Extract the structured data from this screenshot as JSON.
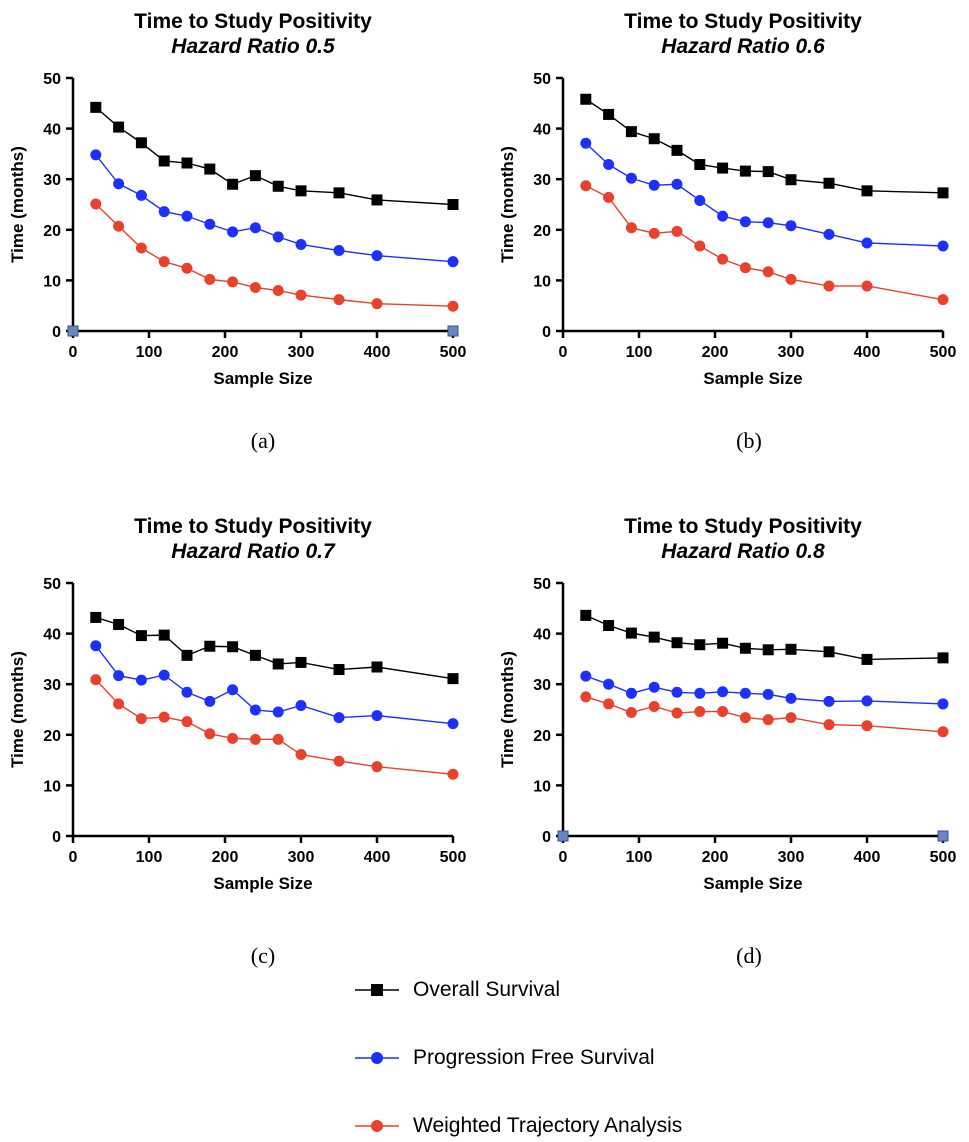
{
  "colors": {
    "os": "#000000",
    "pfs": "#1f2fff",
    "wta": "#e8412e",
    "axis_end_marker": "#6b84c4"
  },
  "legend": [
    {
      "name": "Overall Survival",
      "color": "#000000",
      "marker": "square"
    },
    {
      "name": "Progression Free Survival",
      "color": "#1f2fff",
      "marker": "circle"
    },
    {
      "name": "Weighted Trajectory Analysis",
      "color": "#e8412e",
      "marker": "circle"
    }
  ],
  "panels": [
    {
      "label": "(a)"
    },
    {
      "label": "(b)"
    },
    {
      "label": "(c)"
    },
    {
      "label": "(d)"
    }
  ],
  "chart_data": [
    {
      "type": "line",
      "title": "Time to Study Positivity",
      "subtitle": "Hazard Ratio 0.5",
      "xlabel": "Sample Size",
      "ylabel": "Time (months)",
      "xlim": [
        0,
        500
      ],
      "ylim": [
        0,
        50
      ],
      "xticks": [
        0,
        100,
        200,
        300,
        400,
        500
      ],
      "yticks": [
        0,
        10,
        20,
        30,
        40,
        50
      ],
      "axis_end_markers": true,
      "x": [
        30,
        60,
        90,
        120,
        150,
        180,
        210,
        240,
        270,
        300,
        350,
        400,
        500
      ],
      "series": [
        {
          "name": "Overall Survival",
          "values": [
            44.2,
            40.3,
            37.2,
            33.6,
            33.2,
            32.0,
            29.0,
            30.7,
            28.6,
            27.7,
            27.3,
            25.9,
            25.0
          ]
        },
        {
          "name": "Progression Free Survival",
          "values": [
            34.8,
            29.1,
            26.8,
            23.6,
            22.7,
            21.1,
            19.6,
            20.4,
            18.6,
            17.1,
            15.9,
            14.9,
            13.7
          ]
        },
        {
          "name": "Weighted Trajectory Analysis",
          "values": [
            25.1,
            20.7,
            16.4,
            13.7,
            12.4,
            10.2,
            9.7,
            8.6,
            8.0,
            7.1,
            6.2,
            5.4,
            4.9
          ]
        }
      ]
    },
    {
      "type": "line",
      "title": "Time to Study Positivity",
      "subtitle": "Hazard Ratio 0.6",
      "xlabel": "Sample Size",
      "ylabel": "Time (months)",
      "xlim": [
        0,
        500
      ],
      "ylim": [
        0,
        50
      ],
      "xticks": [
        0,
        100,
        200,
        300,
        400,
        500
      ],
      "yticks": [
        0,
        10,
        20,
        30,
        40,
        50
      ],
      "axis_end_markers": false,
      "x": [
        30,
        60,
        90,
        120,
        150,
        180,
        210,
        240,
        270,
        300,
        350,
        400,
        500
      ],
      "series": [
        {
          "name": "Overall Survival",
          "values": [
            45.8,
            42.8,
            39.4,
            38.0,
            35.7,
            32.9,
            32.2,
            31.6,
            31.5,
            29.9,
            29.2,
            27.7,
            27.3
          ]
        },
        {
          "name": "Progression Free Survival",
          "values": [
            37.1,
            32.9,
            30.2,
            28.8,
            29.0,
            25.8,
            22.7,
            21.6,
            21.4,
            20.8,
            19.1,
            17.4,
            16.8
          ]
        },
        {
          "name": "Weighted Trajectory Analysis",
          "values": [
            28.7,
            26.4,
            20.4,
            19.3,
            19.7,
            16.8,
            14.2,
            12.5,
            11.7,
            10.2,
            8.9,
            8.9,
            6.2
          ]
        }
      ]
    },
    {
      "type": "line",
      "title": "Time to Study Positivity",
      "subtitle": "Hazard Ratio 0.7",
      "xlabel": "Sample Size",
      "ylabel": "Time (months)",
      "xlim": [
        0,
        500
      ],
      "ylim": [
        0,
        50
      ],
      "xticks": [
        0,
        100,
        200,
        300,
        400,
        500
      ],
      "yticks": [
        0,
        10,
        20,
        30,
        40,
        50
      ],
      "axis_end_markers": false,
      "x": [
        30,
        60,
        90,
        120,
        150,
        180,
        210,
        240,
        270,
        300,
        350,
        400,
        500
      ],
      "series": [
        {
          "name": "Overall Survival",
          "values": [
            43.2,
            41.8,
            39.6,
            39.7,
            35.7,
            37.5,
            37.4,
            35.7,
            34.0,
            34.3,
            32.9,
            33.4,
            31.1
          ]
        },
        {
          "name": "Progression Free Survival",
          "values": [
            37.6,
            31.7,
            30.8,
            31.8,
            28.4,
            26.6,
            28.9,
            24.9,
            24.5,
            25.8,
            23.4,
            23.8,
            22.2
          ]
        },
        {
          "name": "Weighted Trajectory Analysis",
          "values": [
            30.9,
            26.1,
            23.2,
            23.5,
            22.6,
            20.2,
            19.3,
            19.1,
            19.1,
            16.1,
            14.8,
            13.7,
            12.2
          ]
        }
      ]
    },
    {
      "type": "line",
      "title": "Time to Study Positivity",
      "subtitle": "Hazard Ratio 0.8",
      "xlabel": "Sample Size",
      "ylabel": "Time (months)",
      "xlim": [
        0,
        500
      ],
      "ylim": [
        0,
        50
      ],
      "xticks": [
        0,
        100,
        200,
        300,
        400,
        500
      ],
      "yticks": [
        0,
        10,
        20,
        30,
        40,
        50
      ],
      "axis_end_markers": true,
      "x": [
        30,
        60,
        90,
        120,
        150,
        180,
        210,
        240,
        270,
        300,
        350,
        400,
        500
      ],
      "series": [
        {
          "name": "Overall Survival",
          "values": [
            43.6,
            41.6,
            40.1,
            39.3,
            38.2,
            37.8,
            38.1,
            37.1,
            36.8,
            36.9,
            36.4,
            34.9,
            35.2
          ]
        },
        {
          "name": "Progression Free Survival",
          "values": [
            31.6,
            30.0,
            28.2,
            29.4,
            28.4,
            28.2,
            28.5,
            28.2,
            28.0,
            27.2,
            26.6,
            26.7,
            26.1
          ]
        },
        {
          "name": "Weighted Trajectory Analysis",
          "values": [
            27.5,
            26.1,
            24.4,
            25.6,
            24.3,
            24.6,
            24.6,
            23.4,
            23.0,
            23.4,
            22.0,
            21.8,
            20.6
          ]
        }
      ]
    }
  ]
}
